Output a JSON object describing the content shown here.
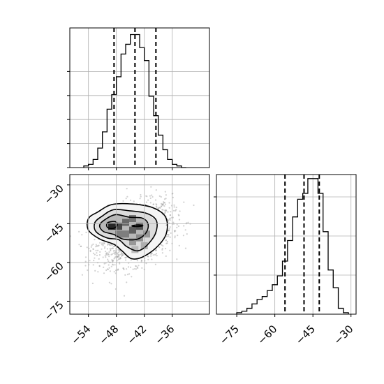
{
  "chart_data": [
    {
      "panel": "x-marginal",
      "type": "histogram",
      "xlim": [
        -58,
        -28
      ],
      "x_ticks": [
        -54,
        -48,
        -42,
        -36
      ],
      "quantile_lines": [
        -48.5,
        -44.0,
        -39.5
      ],
      "bins": {
        "edges": [
          -55,
          -54,
          -53,
          -52,
          -51,
          -50,
          -49,
          -48,
          -47,
          -46,
          -45,
          -44,
          -43,
          -42,
          -41,
          -40,
          -39,
          -38,
          -37,
          -36,
          -35,
          -34,
          -33
        ],
        "counts": [
          1,
          2,
          5,
          12,
          22,
          36,
          45,
          56,
          70,
          76,
          82,
          82,
          74,
          66,
          44,
          32,
          20,
          11,
          5,
          2,
          1,
          0
        ]
      },
      "grid": true
    },
    {
      "panel": "y-marginal",
      "type": "histogram",
      "xlim": [
        -83,
        -28
      ],
      "x_ticks": [
        -75,
        -60,
        -45,
        -30
      ],
      "quantile_lines": [
        -56,
        -48.5,
        -42.5
      ],
      "bins": {
        "edges": [
          -75,
          -73,
          -71,
          -69,
          -67,
          -65,
          -63,
          -61,
          -59,
          -57,
          -55,
          -53,
          -51,
          -49,
          -47,
          -45,
          -43,
          -41,
          -39,
          -37,
          -35,
          -33,
          -31
        ],
        "counts": [
          1,
          2,
          4,
          7,
          10,
          12,
          16,
          20,
          26,
          36,
          50,
          66,
          78,
          82,
          92,
          92,
          82,
          56,
          30,
          18,
          4,
          1,
          0
        ]
      },
      "grid": true
    },
    {
      "panel": "joint",
      "type": "scatter",
      "xlim": [
        -58,
        -28
      ],
      "ylim": [
        -80,
        -26
      ],
      "x_ticks": [
        -54,
        -48,
        -42,
        -36
      ],
      "y_ticks": [
        -30,
        -45,
        -60,
        -75
      ],
      "scatter": {
        "n_points": 1600,
        "center": [
          -44.0,
          -49.0
        ],
        "std": [
          4.0,
          6.0
        ],
        "color": "#9a9a9a"
      },
      "density_cells": [
        {
          "x": -49,
          "y": -46,
          "level": 0.95
        },
        {
          "x": -47.5,
          "y": -46,
          "level": 0.8
        },
        {
          "x": -46,
          "y": -44.5,
          "level": 0.65
        },
        {
          "x": -44.5,
          "y": -43,
          "level": 0.6
        },
        {
          "x": -43,
          "y": -46,
          "level": 0.75
        },
        {
          "x": -44.5,
          "y": -47.5,
          "level": 0.7
        },
        {
          "x": -46,
          "y": -49,
          "level": 0.55
        },
        {
          "x": -43,
          "y": -50.5,
          "level": 0.5
        },
        {
          "x": -41.5,
          "y": -49,
          "level": 0.45
        },
        {
          "x": -44.5,
          "y": -52,
          "level": 0.45
        },
        {
          "x": -47.5,
          "y": -49,
          "level": 0.55
        },
        {
          "x": -42,
          "y": -53.5,
          "level": 0.35
        },
        {
          "x": -44,
          "y": -55,
          "level": 0.3
        }
      ],
      "contours": [
        {
          "level": "inner-1",
          "points": [
            [
              -49.6,
              -44.4
            ],
            [
              -48.2,
              -44.2
            ],
            [
              -47.8,
              -45.6
            ],
            [
              -48.6,
              -46.8
            ],
            [
              -49.8,
              -46.6
            ],
            [
              -50.1,
              -45.3
            ]
          ]
        },
        {
          "level": "inner-2",
          "points": [
            [
              -44.5,
              -45.7
            ],
            [
              -43.3,
              -45.5
            ],
            [
              -42.3,
              -45.8
            ],
            [
              -43.3,
              -46.1
            ],
            [
              -44.5,
              -46.0
            ]
          ]
        },
        {
          "level": "mid",
          "points": [
            [
              -50.5,
              -43.5
            ],
            [
              -48.2,
              -41.5
            ],
            [
              -45.2,
              -42.5
            ],
            [
              -42.5,
              -42.8
            ],
            [
              -41.2,
              -45.0
            ],
            [
              -41.6,
              -48.5
            ],
            [
              -43.5,
              -51.0
            ],
            [
              -46.5,
              -51.0
            ],
            [
              -48.5,
              -49.2
            ],
            [
              -50.8,
              -48.0
            ],
            [
              -51.6,
              -45.6
            ]
          ]
        },
        {
          "level": "outer-1",
          "points": [
            [
              -51.0,
              -42.0
            ],
            [
              -48.6,
              -39.6
            ],
            [
              -45.2,
              -40.0
            ],
            [
              -41.5,
              -41.0
            ],
            [
              -39.4,
              -43.8
            ],
            [
              -39.6,
              -48.8
            ],
            [
              -41.5,
              -53.5
            ],
            [
              -43.5,
              -55.5
            ],
            [
              -45.8,
              -53.8
            ],
            [
              -47.5,
              -51.2
            ],
            [
              -50.0,
              -50.5
            ],
            [
              -52.4,
              -48.0
            ],
            [
              -52.6,
              -44.5
            ]
          ]
        },
        {
          "level": "outer-2",
          "points": [
            [
              -52.0,
              -40.5
            ],
            [
              -49.0,
              -37.6
            ],
            [
              -44.5,
              -37.4
            ],
            [
              -40.2,
              -38.8
            ],
            [
              -37.4,
              -42.5
            ],
            [
              -37.3,
              -49.0
            ],
            [
              -39.5,
              -54.4
            ],
            [
              -42.5,
              -58.0
            ],
            [
              -44.8,
              -58.5
            ],
            [
              -46.8,
              -55.5
            ],
            [
              -48.5,
              -53.0
            ],
            [
              -51.5,
              -51.0
            ],
            [
              -54.0,
              -47.5
            ],
            [
              -54.0,
              -43.0
            ]
          ]
        }
      ],
      "grid": true
    }
  ]
}
